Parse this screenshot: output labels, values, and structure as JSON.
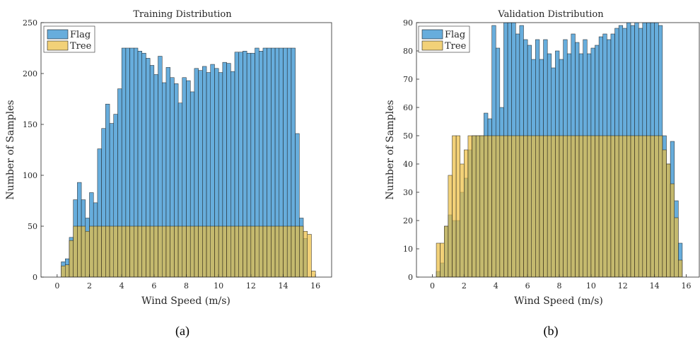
{
  "colors": {
    "flag": "#4c9fd6",
    "tree": "#edbe3e",
    "flag_opacity": 0.85,
    "tree_opacity": 0.7
  },
  "chart_data": [
    {
      "type": "bar",
      "histogram": true,
      "title": "Training Distribution",
      "xlabel": "Wind Speed (m/s)",
      "ylabel": "Number of Samples",
      "xlim": [
        -1,
        17
      ],
      "ylim": [
        0,
        250
      ],
      "xticks": [
        "0",
        "2",
        "4",
        "6",
        "8",
        "10",
        "12",
        "14",
        "16"
      ],
      "yticks": [
        "0",
        "50",
        "100",
        "150",
        "200",
        "250"
      ],
      "caption": "(a)",
      "legend_position": "top-left",
      "bin_width": 0.25,
      "series": [
        {
          "name": "Flag",
          "bin_start": 0.25,
          "values": [
            15,
            18,
            39,
            76,
            93,
            76,
            58,
            83,
            73,
            126,
            146,
            170,
            151,
            160,
            185,
            225,
            225,
            225,
            225,
            222,
            220,
            215,
            208,
            199,
            217,
            191,
            206,
            196,
            190,
            171,
            196,
            193,
            182,
            205,
            203,
            207,
            201,
            209,
            205,
            201,
            211,
            210,
            202,
            221,
            221,
            222,
            220,
            220,
            225,
            222,
            225,
            225,
            225,
            225,
            225,
            225,
            225,
            225,
            141,
            58,
            38
          ]
        },
        {
          "name": "Tree",
          "bin_start": 0.25,
          "values": [
            11,
            12,
            36,
            50,
            50,
            50,
            45,
            50,
            50,
            50,
            50,
            50,
            50,
            50,
            50,
            50,
            50,
            50,
            50,
            50,
            50,
            50,
            50,
            50,
            50,
            50,
            50,
            50,
            50,
            50,
            50,
            50,
            50,
            50,
            50,
            50,
            50,
            50,
            50,
            50,
            50,
            50,
            50,
            50,
            50,
            50,
            50,
            50,
            50,
            50,
            50,
            50,
            50,
            50,
            50,
            50,
            50,
            50,
            50,
            50,
            45,
            42,
            6
          ]
        }
      ]
    },
    {
      "type": "bar",
      "histogram": true,
      "title": "Validation Distribution",
      "xlabel": "Wind Speed (m/s)",
      "ylabel": "Number of Samples",
      "xlim": [
        -1,
        17
      ],
      "ylim": [
        0,
        90
      ],
      "xticks": [
        "0",
        "2",
        "4",
        "6",
        "8",
        "10",
        "12",
        "14",
        "16"
      ],
      "yticks": [
        "0",
        "10",
        "20",
        "30",
        "40",
        "50",
        "60",
        "70",
        "80",
        "90"
      ],
      "caption": "(b)",
      "legend_position": "top-left",
      "bin_width": 0.25,
      "series": [
        {
          "name": "Flag",
          "bin_start": 0.25,
          "values": [
            2,
            5,
            18,
            22,
            20,
            20,
            30,
            35,
            45,
            50,
            50,
            50,
            58,
            56,
            89,
            81,
            60,
            90,
            90,
            90,
            86,
            89,
            84,
            82,
            77,
            84,
            77,
            84,
            79,
            74,
            80,
            77,
            84,
            79,
            86,
            83,
            79,
            84,
            79,
            81,
            82,
            85,
            86,
            84,
            86,
            88,
            89,
            88,
            90,
            89,
            90,
            88,
            90,
            90,
            90,
            90,
            89,
            50,
            40,
            48,
            27,
            12
          ]
        },
        {
          "name": "Tree",
          "bin_start": 0.25,
          "values": [
            12,
            12,
            18,
            36,
            50,
            50,
            40,
            45,
            50,
            50,
            50,
            50,
            50,
            50,
            50,
            50,
            50,
            50,
            50,
            50,
            50,
            50,
            50,
            50,
            50,
            50,
            50,
            50,
            50,
            50,
            50,
            50,
            50,
            50,
            50,
            50,
            50,
            50,
            50,
            50,
            50,
            50,
            50,
            50,
            50,
            50,
            50,
            50,
            50,
            50,
            50,
            50,
            50,
            50,
            50,
            50,
            50,
            45,
            40,
            33,
            21,
            6
          ]
        }
      ]
    }
  ]
}
